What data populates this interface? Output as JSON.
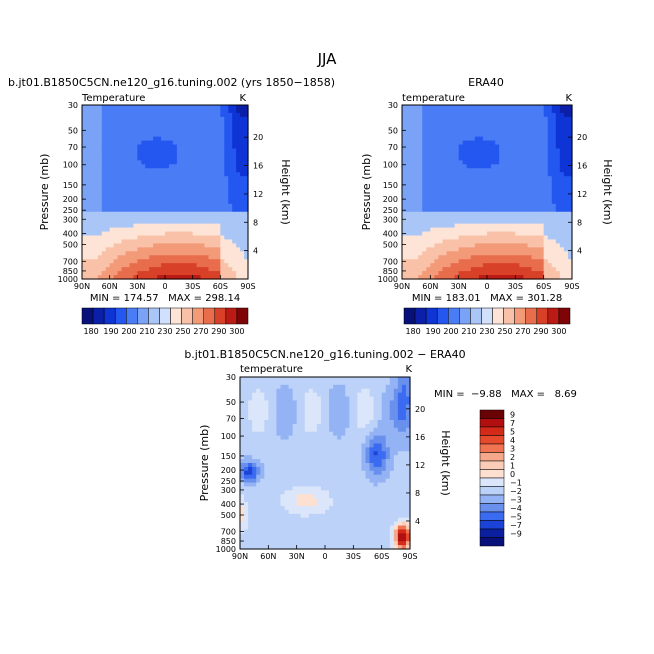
{
  "page_title": "JJA",
  "colors": {
    "cold_darkest": "#08107a",
    "cold_dark": "#0c2fd0",
    "cold_mid": "#3a6bf0",
    "cold_light": "#a9c6f7",
    "cold_pale": "#dbe6fb",
    "warm_pale": "#fde0d0",
    "warm_light": "#f6a98a",
    "warm_mid": "#e64a2c",
    "warm_dark": "#b21010",
    "warm_darkest": "#6a0306"
  },
  "chart_data": [
    {
      "type": "heatmap",
      "title": "b.jt01.B1850C5CN.ne120_g16.tuning.002 (yrs 1850−1858)",
      "subtitle_left": "Temperature",
      "subtitle_right": "K",
      "xlabel": "",
      "ylabel": "Pressure (mb)",
      "ylabel_right": "Height (km)",
      "x_ticks": [
        "90N",
        "60N",
        "30N",
        "0",
        "30S",
        "60S",
        "90S"
      ],
      "y_ticks": [
        "30",
        "50",
        "70",
        "100",
        "150",
        "200",
        "250",
        "300",
        "400",
        "500",
        "700",
        "850",
        "1000"
      ],
      "y_ticks_right": [
        "20",
        "16",
        "12",
        "8",
        "4"
      ],
      "stats": "MIN = 174.57   MAX = 298.14",
      "colorbar_labels": [
        "180",
        "190",
        "200",
        "210",
        "230",
        "250",
        "270",
        "290",
        "300"
      ],
      "field_model": "climatology"
    },
    {
      "type": "heatmap",
      "title": "ERA40",
      "subtitle_left": "temperature",
      "subtitle_right": "K",
      "xlabel": "",
      "ylabel": "Pressure (mb)",
      "ylabel_right": "Height (km)",
      "x_ticks": [
        "90N",
        "60N",
        "30N",
        "0",
        "30S",
        "60S",
        "90S"
      ],
      "y_ticks": [
        "30",
        "50",
        "70",
        "100",
        "150",
        "200",
        "250",
        "300",
        "400",
        "500",
        "700",
        "850",
        "1000"
      ],
      "y_ticks_right": [
        "20",
        "16",
        "12",
        "8",
        "4"
      ],
      "stats": "MIN = 183.01   MAX = 301.28",
      "colorbar_labels": [
        "180",
        "190",
        "200",
        "210",
        "230",
        "250",
        "270",
        "290",
        "300"
      ],
      "field_model": "climatology"
    },
    {
      "type": "heatmap",
      "title": "b.jt01.B1850C5CN.ne120_g16.tuning.002 − ERA40",
      "subtitle_left": "temperature",
      "subtitle_right": "K",
      "xlabel": "",
      "ylabel": "Pressure (mb)",
      "ylabel_right": "Height (km)",
      "x_ticks": [
        "90N",
        "60N",
        "30N",
        "0",
        "30S",
        "60S",
        "90S"
      ],
      "y_ticks": [
        "30",
        "50",
        "70",
        "100",
        "150",
        "200",
        "250",
        "300",
        "400",
        "500",
        "700",
        "850",
        "1000"
      ],
      "y_ticks_right": [
        "20",
        "16",
        "12",
        "8",
        "4"
      ],
      "stats": "MIN =  −9.88   MAX =   8.69",
      "colorbar_labels": [
        "9",
        "7",
        "5",
        "4",
        "3",
        "2",
        "1",
        "0",
        "−1",
        "−2",
        "−3",
        "−4",
        "−5",
        "−7",
        "−9"
      ],
      "field_model": "difference"
    }
  ]
}
